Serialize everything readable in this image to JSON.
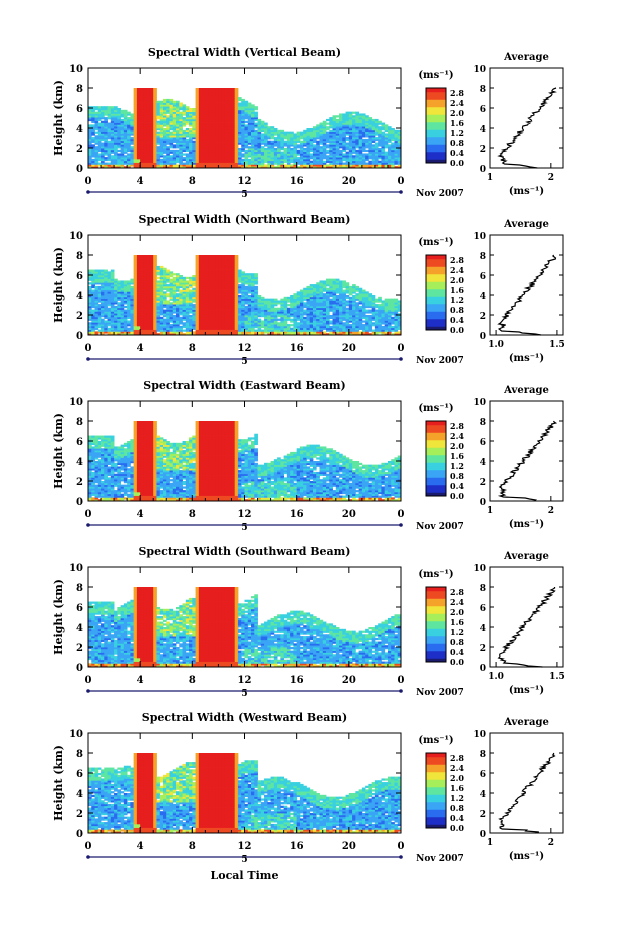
{
  "panels": [
    {
      "title": "Spectral Width (Vertical Beam)",
      "avg_ticks": [
        "1",
        "2"
      ],
      "avg_range": [
        1,
        2.2
      ]
    },
    {
      "title": "Spectral Width (Northward Beam)",
      "avg_ticks": [
        "1.0",
        "1.5"
      ],
      "avg_range": [
        0.95,
        1.55
      ]
    },
    {
      "title": "Spectral Width (Eastward Beam)",
      "avg_ticks": [
        "1",
        "2"
      ],
      "avg_range": [
        1,
        2.2
      ]
    },
    {
      "title": "Spectral Width (Southward Beam)",
      "avg_ticks": [
        "1.0",
        "1.5"
      ],
      "avg_range": [
        0.95,
        1.55
      ]
    },
    {
      "title": "Spectral Width (Westward Beam)",
      "avg_ticks": [
        "1",
        "2"
      ],
      "avg_range": [
        1,
        2.2
      ]
    }
  ],
  "labels": {
    "ylabel": "Height (km)",
    "average_title": "Average",
    "unit": "(ms⁻¹)",
    "date": "Nov 2007",
    "date_marker": "5",
    "xlabel": "Local Time"
  },
  "chart_data": {
    "type": "heatmap",
    "x_ticks": [
      "0",
      "4",
      "8",
      "12",
      "16",
      "20",
      "0"
    ],
    "x_range": [
      0,
      24
    ],
    "y_ticks": [
      "0",
      "2",
      "4",
      "6",
      "8",
      "10"
    ],
    "y_range": [
      0,
      10
    ],
    "colorbar_ticks": [
      "0.0",
      "0.4",
      "0.8",
      "1.2",
      "1.6",
      "2.0",
      "2.4",
      "2.8"
    ],
    "colorbar_range": [
      0,
      3.0
    ],
    "avg_y_ticks": [
      "0",
      "2",
      "4",
      "6",
      "8",
      "10"
    ],
    "colormap": [
      "#1a1a6e",
      "#1e2fc8",
      "#2a6cf0",
      "#3aa4f5",
      "#39d0e0",
      "#5ee6a0",
      "#a6ee5a",
      "#f0e53a",
      "#f5a22a",
      "#ee4a22",
      "#e61e1e"
    ]
  }
}
